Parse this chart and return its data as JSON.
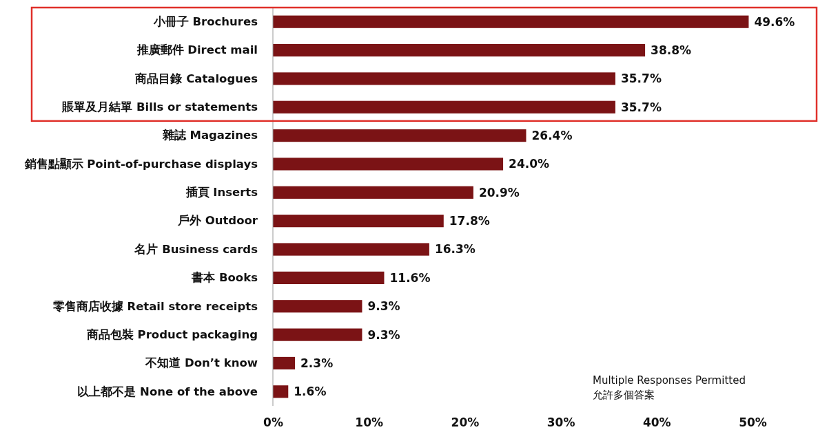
{
  "chart_data": {
    "type": "bar",
    "orientation": "horizontal",
    "categories": [
      "小冊子 Brochures",
      "推廣郵件 Direct mail",
      "商品目錄 Catalogues",
      "賬單及月結單 Bills or statements",
      "雜誌 Magazines",
      "銷售點顯示 Point-of-purchase displays",
      "插頁 Inserts",
      "戶外 Outdoor",
      "名片 Business cards",
      "書本 Books",
      "零售商店收據 Retail store receipts",
      "商品包裝 Product packaging",
      "不知道 Don’t know",
      "以上都不是 None of the above"
    ],
    "values": [
      49.6,
      38.8,
      35.7,
      35.7,
      26.4,
      24.0,
      20.9,
      17.8,
      16.3,
      11.6,
      9.3,
      9.3,
      2.3,
      1.6
    ],
    "value_labels": [
      "49.6%",
      "38.8%",
      "35.7%",
      "35.7%",
      "26.4%",
      "24.0%",
      "20.9%",
      "17.8%",
      "16.3%",
      "11.6%",
      "9.3%",
      "9.3%",
      "2.3%",
      "1.6%"
    ],
    "color": "#7b1315",
    "xlim": [
      0,
      50
    ],
    "xticks": [
      {
        "value": 0,
        "label": "0%"
      },
      {
        "value": 10,
        "label": "10%"
      },
      {
        "value": 20,
        "label": "20%"
      },
      {
        "value": 30,
        "label": "30%"
      },
      {
        "value": 40,
        "label": "40%"
      },
      {
        "value": 50,
        "label": "50%"
      }
    ],
    "grid": false,
    "annotations": [
      "Multiple Responses Permitted",
      "允許多個答案"
    ]
  }
}
